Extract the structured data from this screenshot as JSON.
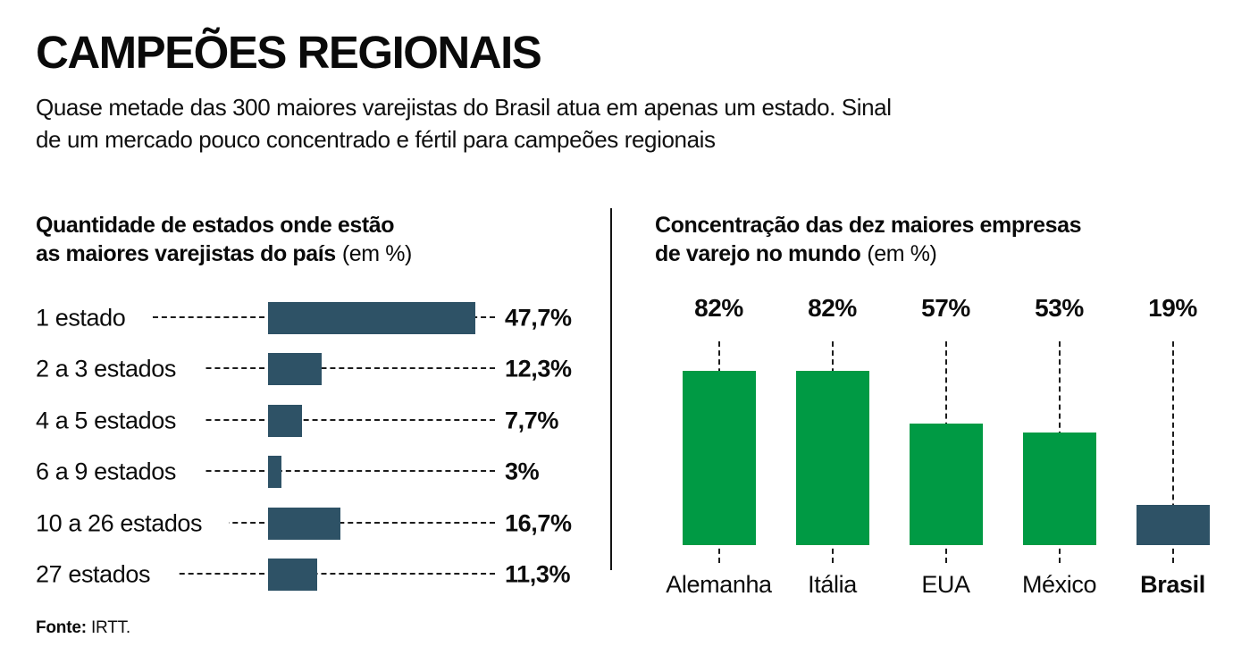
{
  "header": {
    "title": "CAMPEÕES REGIONAIS",
    "subtitle_line1": "Quase metade das 300 maiores varejistas do Brasil atua em apenas um estado. Sinal",
    "subtitle_line2": "de um mercado pouco concentrado e fértil para campeões regionais"
  },
  "left_chart": {
    "title_line1": "Quantidade de estados onde estão",
    "title_line2": "as maiores varejistas do país",
    "title_unit": "(em %)"
  },
  "right_chart": {
    "title_line1": "Concentração das dez maiores empresas",
    "title_line2": "de varejo no mundo",
    "title_unit": "(em %)"
  },
  "footer": {
    "source_label": "Fonte:",
    "source_value": "IRTT."
  },
  "colors": {
    "bar_blue": "#2E5266",
    "bar_green": "#009A44",
    "dash": "#1c1c1c",
    "text": "#0c0c0c"
  },
  "chart_data": [
    {
      "type": "bar",
      "orientation": "horizontal",
      "title": "Quantidade de estados onde estão as maiores varejistas do país (em %)",
      "categories": [
        "1 estado",
        "2 a 3 estados",
        "4 a 5 estados",
        "6 a 9 estados",
        "10 a 26 estados",
        "27 estados"
      ],
      "values": [
        47.7,
        12.3,
        7.7,
        3,
        16.7,
        11.3
      ],
      "value_labels": [
        "47,7%",
        "12,3%",
        "7,7%",
        "3%",
        "16,7%",
        "11,3%"
      ],
      "unit": "%",
      "xlim": [
        0,
        50
      ],
      "grid": false,
      "legend": "none"
    },
    {
      "type": "bar",
      "orientation": "vertical",
      "title": "Concentração das dez maiores empresas de varejo no mundo (em %)",
      "categories": [
        "Alemanha",
        "Itália",
        "EUA",
        "México",
        "Brasil"
      ],
      "values": [
        82,
        82,
        57,
        53,
        19
      ],
      "value_labels": [
        "82%",
        "82%",
        "57%",
        "53%",
        "19%"
      ],
      "highlight_category": "Brasil",
      "unit": "%",
      "ylim": [
        0,
        100
      ],
      "grid": false,
      "legend": "none"
    }
  ]
}
